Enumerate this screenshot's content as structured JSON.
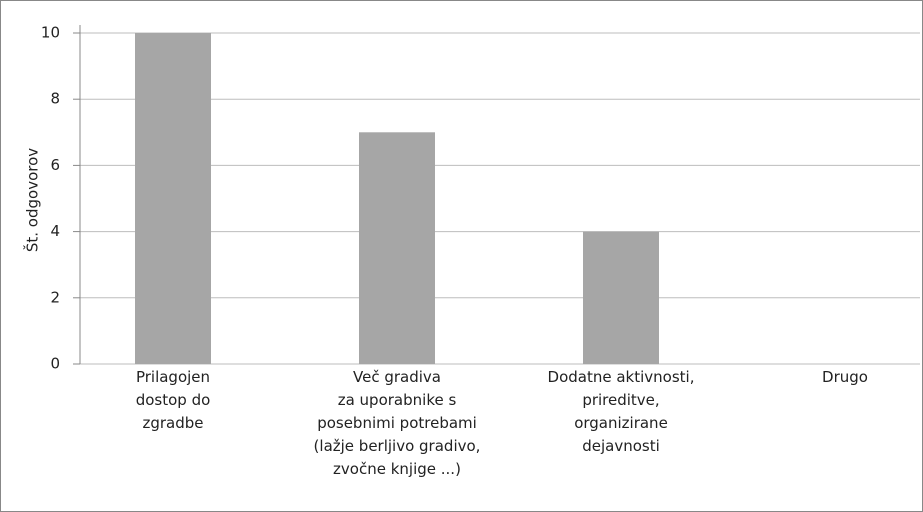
{
  "chart_data": {
    "type": "bar",
    "y_label": "Št. odgovorov",
    "categories": [
      "Prilagojen\ndostop do\nzgradbe",
      "Več gradiva\nza uporabnike s\nposebnimi potrebami\n(lažje berljivo gradivo,\nzvočne knjige ...)",
      "Dodatne aktivnosti,\nprireditve,\norganizirane\ndejavnosti",
      "Drugo"
    ],
    "values": [
      10,
      7,
      4,
      0
    ],
    "color": "#a6a6a6",
    "ylim": [
      0,
      10
    ],
    "yticks": [
      0,
      2,
      4,
      6,
      8,
      10
    ],
    "grid": true
  }
}
